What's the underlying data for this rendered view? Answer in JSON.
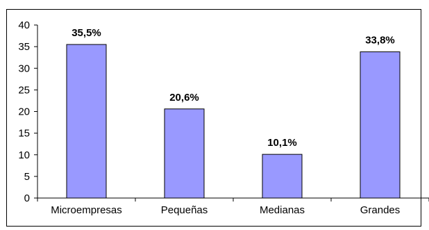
{
  "chart_data": {
    "type": "bar",
    "title": "",
    "xlabel": "",
    "ylabel": "",
    "categories": [
      "Microempresas",
      "Pequeñas",
      "Medianas",
      "Grandes"
    ],
    "values": [
      35.5,
      20.6,
      10.1,
      33.8
    ],
    "data_labels": [
      "35,5%",
      "20,6%",
      "10,1%",
      "33,8%"
    ],
    "ylim": [
      0,
      40
    ],
    "yticks": [
      0,
      5,
      10,
      15,
      20,
      25,
      30,
      35,
      40
    ],
    "grid": false,
    "legend": "none",
    "colors": {
      "bar_fill": "#9999ff",
      "bar_stroke": "#000000",
      "axis": "#000000"
    }
  }
}
